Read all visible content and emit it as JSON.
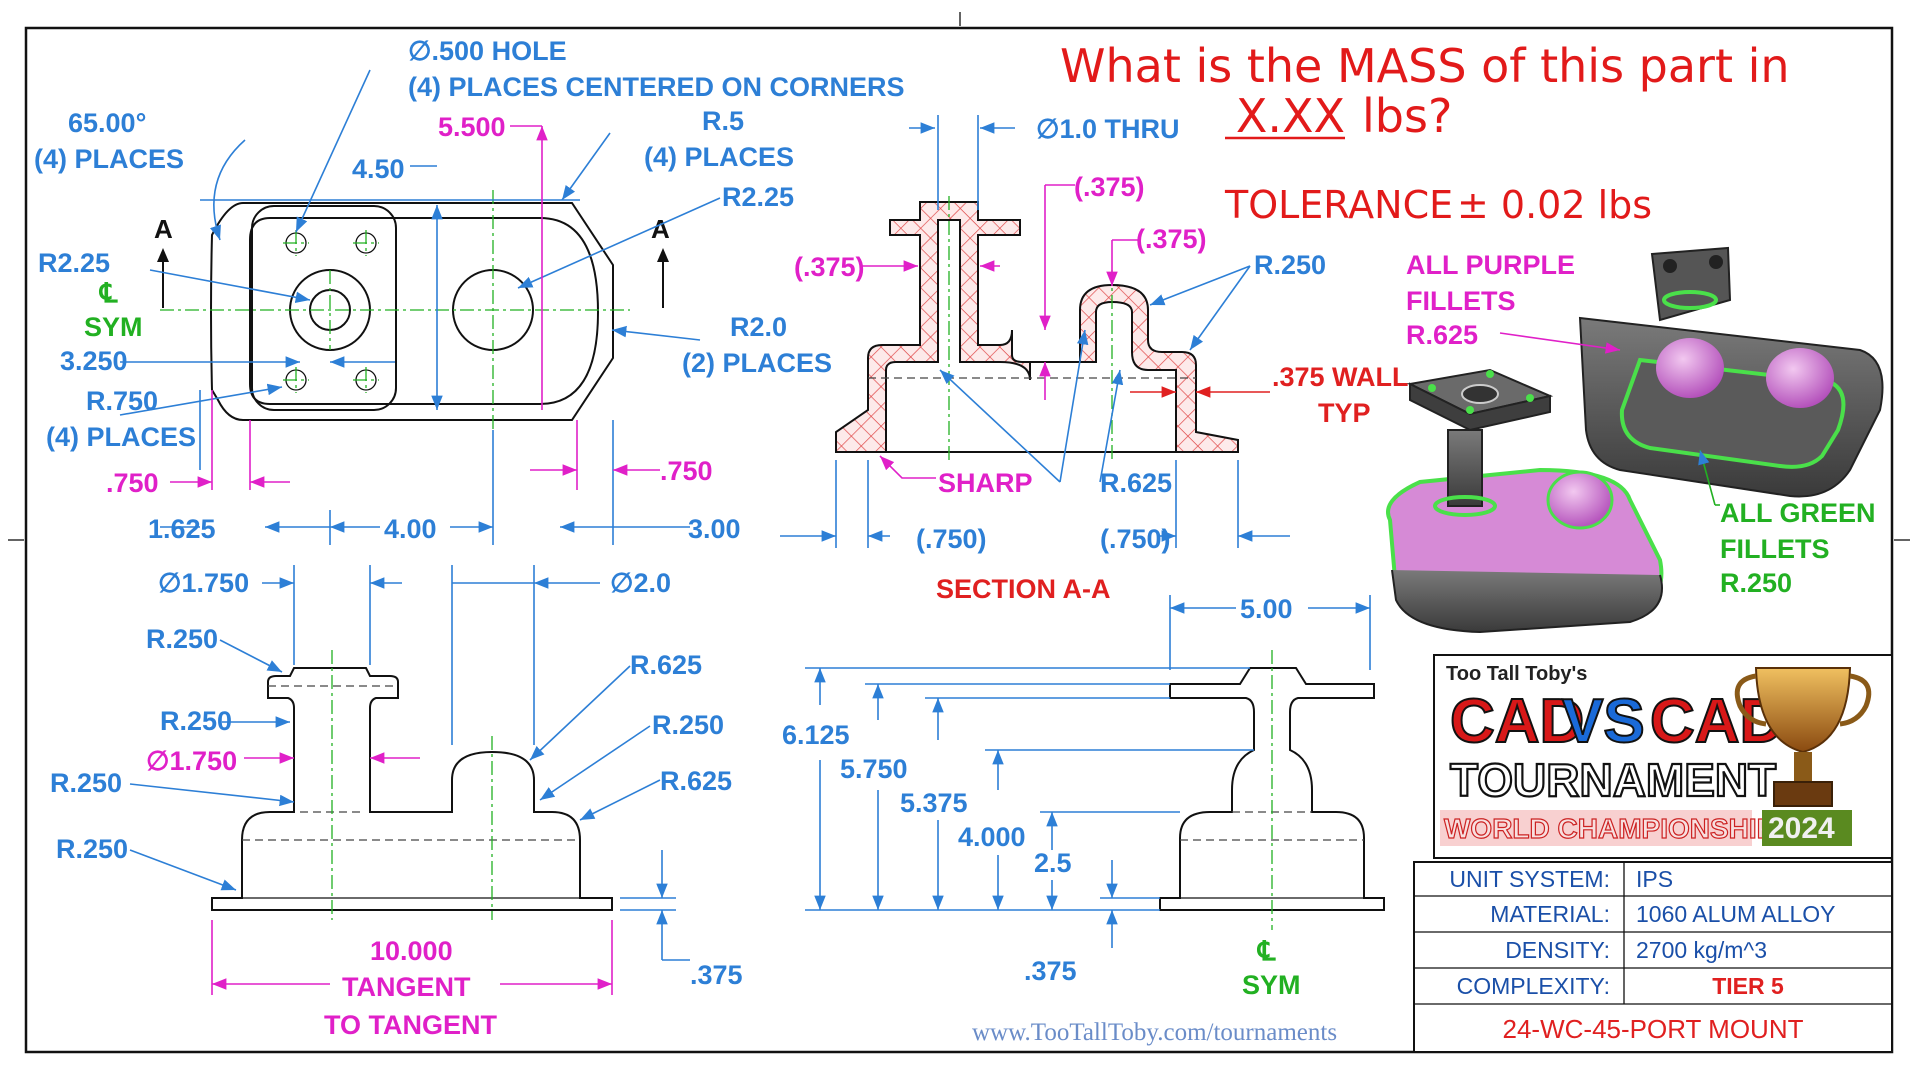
{
  "question": {
    "line1": "What is the MASS of this part in",
    "line2_underlined": "X.XX",
    "line2_rest": "lbs?",
    "tolerance_label": "TOLERANCE",
    "tolerance_value": "± 0.02 lbs"
  },
  "top_view": {
    "hole_note_1": "∅.500 HOLE",
    "hole_note_2": "(4) PLACES CENTERED ON CORNERS",
    "angle_1": "65.00°",
    "angle_2": "(4) PLACES",
    "r5_1": "R.5",
    "r5_2": "(4) PLACES",
    "dim_5500": "5.500",
    "dim_450": "4.50",
    "r225_right": "R2.25",
    "r225_left": "R2.25",
    "sym_cl": "℄",
    "sym": "SYM",
    "dim_3250": "3.250",
    "r20_1": "R2.0",
    "r20_2": "(2) PLACES",
    "r750_1": "R.750",
    "r750_2": "(4) PLACES",
    "dim_750_left": ".750",
    "dim_750_right": ".750",
    "dim_1625": "1.625",
    "dim_400": "4.00",
    "dim_300": "3.00",
    "section_arrow": "A"
  },
  "section": {
    "thru": "∅1.0 THRU",
    "d375_a": "(.375)",
    "d375_b": "(.375)",
    "d375_c": "(.375)",
    "r250": "R.250",
    "wall_1": ".375 WALL",
    "wall_2": "TYP",
    "sharp": "SHARP",
    "r625": "R.625",
    "d750_a": "(.750)",
    "d750_b": "(.750)",
    "title": "SECTION A-A"
  },
  "front_view": {
    "dia1750_top": "∅1.750",
    "dia20": "∅2.0",
    "r250_a": "R.250",
    "r250_b": "R.250",
    "dia1750_mid": "∅1.750",
    "r250_c": "R.250",
    "r250_d": "R.250",
    "r625_a": "R.625",
    "r250_e": "R.250",
    "r625_b": "R.625",
    "dim_10000": "10.000",
    "tangent_1": "TANGENT",
    "tangent_2": "TO TANGENT",
    "dim_375": ".375"
  },
  "side_view": {
    "dim_500": "5.00",
    "dim_6125": "6.125",
    "dim_5750": "5.750",
    "dim_5375": "5.375",
    "dim_4000": "4.000",
    "dim_25": "2.5",
    "dim_375": ".375",
    "sym_cl": "℄",
    "sym": "SYM"
  },
  "iso_notes": {
    "purple_1": "ALL PURPLE",
    "purple_2": "FILLETS",
    "purple_3": "R.625",
    "green_1": "ALL GREEN",
    "green_2": "FILLETS",
    "green_3": "R.250"
  },
  "logo": {
    "brand": "Too Tall Toby's",
    "cad1": "CAD",
    "vs": "VS",
    "cad2": "CAD",
    "tournament": "TOURNAMENT",
    "world": "WORLD CHAMPIONSHIP",
    "year": "2024"
  },
  "title_block": {
    "rows": [
      {
        "label": "UNIT SYSTEM:",
        "value": "IPS"
      },
      {
        "label": "MATERIAL:",
        "value": "1060 ALUM ALLOY"
      },
      {
        "label": "DENSITY:",
        "value": "2700 kg/m^3"
      },
      {
        "label": "COMPLEXITY:",
        "value": "TIER 5"
      }
    ],
    "part_name": "24-WC-45-PORT MOUNT"
  },
  "url": "www.TooTallToby.com/tournaments",
  "colors": {
    "dimension_blue": "#2d7fd6",
    "magenta": "#e020c8",
    "red": "#e02020",
    "green": "#22b022"
  }
}
